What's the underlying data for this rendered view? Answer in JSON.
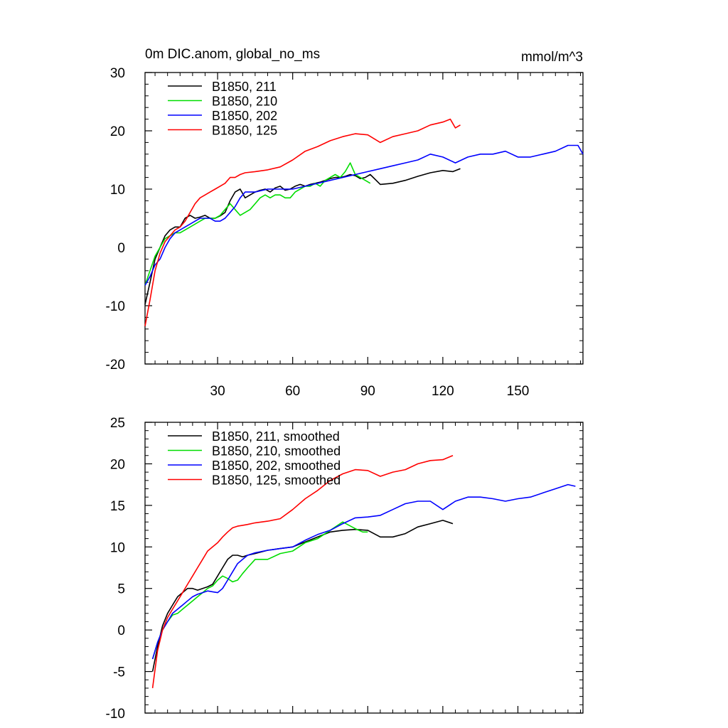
{
  "chart_data": [
    {
      "type": "line",
      "title": "0m DIC.anom, global_no_ms",
      "units": "mmol/m^3",
      "xlim": [
        1,
        176
      ],
      "ylim": [
        -20,
        30
      ],
      "xticks": [
        30,
        60,
        90,
        120,
        150
      ],
      "xtick_labels": [
        "30",
        "60",
        "90",
        "120",
        "150"
      ],
      "yticks": [
        -20,
        -10,
        0,
        10,
        20,
        30
      ],
      "ytick_labels": [
        "-20",
        "-10",
        "0",
        "10",
        "20",
        "30"
      ],
      "legend_position": "top-left",
      "series": [
        {
          "name": "B1850, 211",
          "color": "#000000",
          "x": [
            1,
            3,
            5,
            7,
            9,
            11,
            13,
            15,
            17,
            19,
            21,
            23,
            25,
            27,
            29,
            31,
            33,
            35,
            37,
            39,
            41,
            43,
            45,
            47,
            49,
            51,
            53,
            55,
            57,
            59,
            61,
            63,
            65,
            67,
            69,
            71,
            73,
            75,
            77,
            79,
            81,
            83,
            85,
            87,
            89,
            91,
            95,
            100,
            105,
            110,
            115,
            120,
            124,
            127
          ],
          "values": [
            -9.8,
            -6,
            -2,
            0,
            2,
            3,
            3.5,
            3.5,
            5,
            5.5,
            5,
            5.2,
            5.5,
            5,
            5,
            5.4,
            6,
            8,
            9.5,
            10,
            8.5,
            9,
            9.5,
            9.8,
            10,
            9.5,
            10.2,
            10.5,
            9.8,
            10,
            10.5,
            10.8,
            10.5,
            10.8,
            11,
            11.2,
            11.5,
            11.8,
            12,
            12,
            12.2,
            12.5,
            12.3,
            11.8,
            12,
            12.5,
            10.8,
            11,
            11.5,
            12.2,
            12.8,
            13.2,
            13,
            13.5
          ]
        },
        {
          "name": "B1850, 210",
          "color": "#00dd00",
          "x": [
            1,
            3,
            5,
            7,
            9,
            11,
            13,
            15,
            17,
            19,
            21,
            23,
            25,
            27,
            29,
            31,
            33,
            35,
            37,
            39,
            41,
            43,
            45,
            47,
            49,
            51,
            53,
            55,
            57,
            59,
            61,
            63,
            65,
            67,
            69,
            71,
            73,
            75,
            77,
            79,
            81,
            83,
            85,
            87,
            89,
            91
          ],
          "values": [
            -6.5,
            -4,
            -1.5,
            0,
            1.5,
            2,
            2.5,
            2.5,
            3,
            3.5,
            4,
            4.5,
            5,
            5,
            5,
            5.5,
            6.5,
            7.5,
            6.5,
            5.5,
            6,
            6.5,
            7.5,
            8.5,
            9,
            8.5,
            9,
            9,
            8.5,
            8.5,
            9.5,
            10,
            10.5,
            10.5,
            11,
            10.5,
            11.5,
            12,
            12.5,
            12,
            13,
            14.5,
            12.5,
            12,
            11.5,
            11
          ]
        },
        {
          "name": "B1850, 202",
          "color": "#0000ff",
          "x": [
            1,
            3,
            5,
            7,
            9,
            11,
            13,
            15,
            17,
            19,
            21,
            23,
            25,
            27,
            29,
            31,
            33,
            35,
            37,
            39,
            41,
            45,
            50,
            55,
            60,
            65,
            70,
            75,
            80,
            85,
            90,
            95,
            100,
            105,
            110,
            115,
            120,
            125,
            130,
            135,
            140,
            145,
            150,
            155,
            160,
            165,
            170,
            174,
            176
          ],
          "values": [
            -6.5,
            -5,
            -3,
            -2,
            0,
            1.5,
            2.5,
            3,
            3.5,
            4,
            4.5,
            5,
            5,
            5,
            4.5,
            4.5,
            5,
            6,
            7,
            8.5,
            9.5,
            9.5,
            10,
            10,
            10,
            10.5,
            11,
            11.5,
            12,
            12.5,
            13,
            13.5,
            14,
            14.5,
            15,
            16,
            15.5,
            14.5,
            15.5,
            16,
            16,
            16.5,
            15.5,
            15.5,
            16,
            16.5,
            17.5,
            17.5,
            16
          ]
        },
        {
          "name": "B1850, 125",
          "color": "#ff0000",
          "x": [
            1,
            3,
            5,
            7,
            9,
            11,
            13,
            15,
            17,
            19,
            21,
            23,
            25,
            27,
            29,
            31,
            33,
            35,
            37,
            39,
            41,
            45,
            50,
            55,
            60,
            65,
            70,
            75,
            80,
            85,
            90,
            95,
            100,
            105,
            110,
            115,
            120,
            123,
            125,
            127
          ],
          "values": [
            -13.5,
            -9,
            -4,
            -1,
            1,
            2,
            3,
            3.5,
            4.5,
            6,
            7.5,
            8.5,
            9,
            9.5,
            10,
            10.5,
            11,
            12,
            12,
            12.5,
            12.8,
            13,
            13.3,
            13.8,
            15,
            16.5,
            17.3,
            18.3,
            19,
            19.5,
            19.3,
            18,
            19,
            19.5,
            20,
            21,
            21.5,
            22,
            20.5,
            21
          ]
        }
      ]
    },
    {
      "type": "line",
      "xlim": [
        1,
        176
      ],
      "ylim": [
        -10,
        25
      ],
      "xticks": [
        30,
        60,
        90,
        120,
        150
      ],
      "yticks": [
        -10,
        -5,
        0,
        5,
        10,
        15,
        20,
        25
      ],
      "ytick_labels": [
        "-10",
        "-5",
        "0",
        "5",
        "10",
        "15",
        "20",
        "25"
      ],
      "legend_position": "top-left",
      "series": [
        {
          "name": "B1850, 211, smoothed",
          "color": "#000000",
          "x": [
            4,
            6,
            8,
            10,
            12,
            14,
            16,
            18,
            20,
            22,
            24,
            26,
            28,
            30,
            32,
            34,
            36,
            38,
            40,
            42,
            45,
            50,
            55,
            60,
            65,
            70,
            75,
            80,
            85,
            90,
            95,
            100,
            105,
            110,
            115,
            120,
            124
          ],
          "values": [
            -5,
            -2,
            0.5,
            2,
            3,
            4,
            4.5,
            5,
            5,
            4.8,
            5,
            5.2,
            5.5,
            6.5,
            7.5,
            8.5,
            9,
            9,
            8.8,
            9,
            9.2,
            9.6,
            9.8,
            10,
            10.6,
            11.2,
            11.8,
            12,
            12.1,
            12,
            11.2,
            11.2,
            11.6,
            12.4,
            12.8,
            13.2,
            12.8
          ]
        },
        {
          "name": "B1850, 210, smoothed",
          "color": "#00dd00",
          "x": [
            4,
            6,
            8,
            10,
            12,
            14,
            16,
            18,
            20,
            22,
            24,
            26,
            28,
            30,
            32,
            34,
            36,
            38,
            40,
            42,
            45,
            50,
            55,
            60,
            65,
            70,
            75,
            80,
            85,
            88,
            90
          ],
          "values": [
            -3.5,
            -1.5,
            0,
            1,
            1.8,
            2,
            2.5,
            3,
            3.5,
            4,
            4.5,
            5,
            5.3,
            6,
            6.5,
            6.2,
            5.8,
            6,
            6.8,
            7.5,
            8.5,
            8.5,
            9.2,
            9.5,
            10.5,
            11,
            12,
            13,
            12.2,
            11.8,
            11.8
          ]
        },
        {
          "name": "B1850, 202, smoothed",
          "color": "#0000ff",
          "x": [
            4,
            6,
            8,
            10,
            12,
            14,
            16,
            18,
            20,
            22,
            24,
            26,
            28,
            30,
            32,
            34,
            36,
            38,
            40,
            42,
            45,
            50,
            55,
            60,
            65,
            70,
            75,
            80,
            85,
            90,
            95,
            100,
            105,
            110,
            115,
            120,
            125,
            130,
            135,
            140,
            145,
            150,
            155,
            160,
            165,
            170,
            173
          ],
          "values": [
            -3.5,
            -1.5,
            0,
            1,
            2,
            2.5,
            3,
            3.5,
            4,
            4.3,
            4.5,
            4.7,
            4.6,
            4.5,
            5,
            6,
            7,
            8,
            8.5,
            9,
            9.3,
            9.6,
            9.8,
            10,
            10.8,
            11.5,
            12,
            12.8,
            13.5,
            13.6,
            13.8,
            14.5,
            15.2,
            15.5,
            15.5,
            14.5,
            15.5,
            16,
            16,
            15.8,
            15.5,
            15.8,
            16,
            16.5,
            17,
            17.5,
            17.3
          ]
        },
        {
          "name": "B1850, 125, smoothed",
          "color": "#ff0000",
          "x": [
            4,
            6,
            8,
            10,
            12,
            14,
            16,
            18,
            20,
            22,
            24,
            26,
            28,
            30,
            32,
            34,
            36,
            38,
            40,
            42,
            45,
            50,
            55,
            60,
            65,
            70,
            75,
            80,
            85,
            90,
            95,
            100,
            105,
            110,
            115,
            120,
            124
          ],
          "values": [
            -7,
            -2.5,
            0,
            1.5,
            2.5,
            3.5,
            4.5,
            5.5,
            6.5,
            7.5,
            8.5,
            9.5,
            10,
            10.5,
            11.2,
            11.8,
            12.3,
            12.5,
            12.6,
            12.7,
            12.9,
            13.1,
            13.4,
            14.5,
            15.8,
            16.8,
            18,
            18.8,
            19.3,
            19.2,
            18.5,
            19,
            19.3,
            20,
            20.4,
            20.5,
            21
          ]
        }
      ]
    }
  ]
}
